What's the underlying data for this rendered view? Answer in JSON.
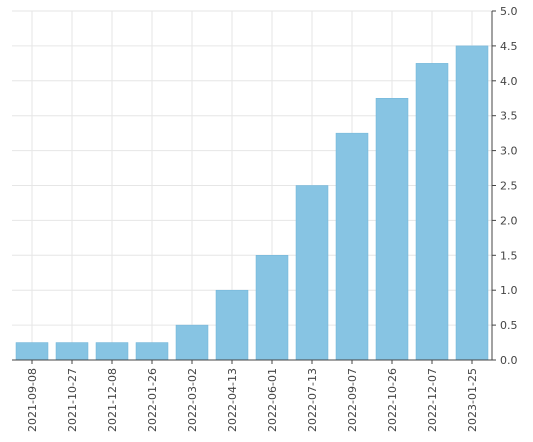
{
  "chart_data": {
    "type": "bar",
    "title": "",
    "xlabel": "",
    "ylabel": "",
    "categories": [
      "2021-09-08",
      "2021-10-27",
      "2021-12-08",
      "2022-01-26",
      "2022-03-02",
      "2022-04-13",
      "2022-06-01",
      "2022-07-13",
      "2022-09-07",
      "2022-10-26",
      "2022-12-07",
      "2023-01-25"
    ],
    "values": [
      0.25,
      0.25,
      0.25,
      0.25,
      0.5,
      1.0,
      1.5,
      2.5,
      3.25,
      3.75,
      4.25,
      4.5
    ],
    "ylim": [
      0,
      5
    ],
    "yticks": [
      "0.0",
      "0.5",
      "1.0",
      "1.5",
      "2.0",
      "2.5",
      "3.0",
      "3.5",
      "4.0",
      "4.5",
      "5.0"
    ],
    "y_axis_side": "right",
    "grid": true,
    "bar_color": "#87c4e3"
  }
}
